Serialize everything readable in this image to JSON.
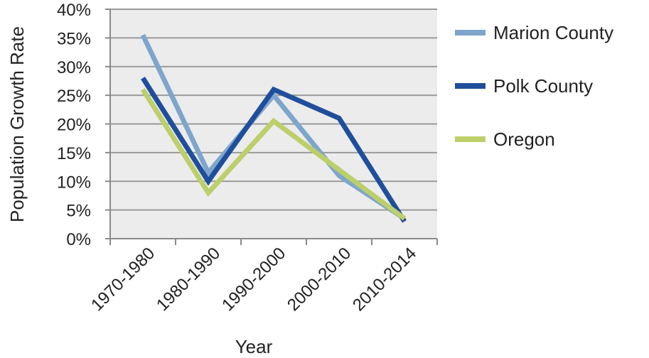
{
  "chart_data": {
    "type": "line",
    "title": "",
    "xlabel": "Year",
    "ylabel": "Population Growth Rate",
    "categories": [
      "1970-1980",
      "1980-1990",
      "1990-2000",
      "2000-2010",
      "2010-2014"
    ],
    "ylim": [
      0,
      40
    ],
    "yticks": [
      "0%",
      "5%",
      "10%",
      "15%",
      "20%",
      "25%",
      "30%",
      "35%",
      "40%"
    ],
    "grid": true,
    "legend": "right",
    "series": [
      {
        "name": "Marion County",
        "color": "#7ea6cc",
        "values": [
          35.5,
          11.5,
          25.0,
          11.0,
          3.5
        ]
      },
      {
        "name": "Polk County",
        "color": "#1f4e9c",
        "values": [
          28.0,
          10.0,
          26.0,
          21.0,
          3.0
        ]
      },
      {
        "name": "Oregon",
        "color": "#bccf6a",
        "values": [
          26.0,
          8.0,
          20.5,
          12.0,
          3.5
        ]
      }
    ]
  }
}
